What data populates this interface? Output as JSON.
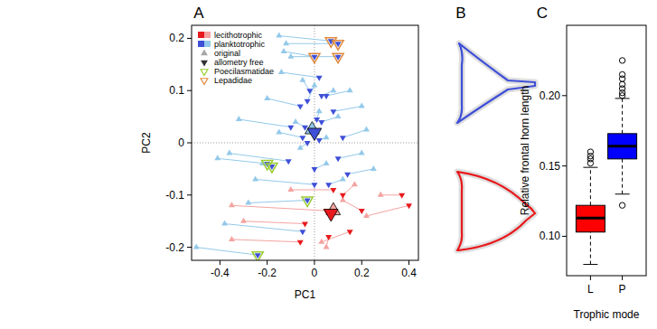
{
  "chart_data": [
    {
      "type": "scatter",
      "panel": "A",
      "x_label": "PC1",
      "y_label": "PC2",
      "xlim": [
        -0.52,
        0.44
      ],
      "ylim": [
        -0.225,
        0.225
      ],
      "xticks": [
        -0.4,
        -0.2,
        0,
        0.2,
        0.4
      ],
      "yticks": [
        -0.2,
        -0.1,
        0,
        0.1,
        0.2
      ],
      "reference_lines": {
        "x": 0,
        "y": 0
      },
      "legend": "top-left",
      "series": [
        {
          "name": "lecithotrophic",
          "colors": [
            "#e8191c",
            "#f4a3a0"
          ],
          "original": {
            "x": [
              -0.35,
              -0.35,
              -0.3,
              0.17,
              0.22,
              0.12,
              0.03,
              0.28,
              -0.1,
              0.05
            ],
            "y": [
              -0.185,
              -0.12,
              -0.15,
              -0.08,
              -0.14,
              -0.11,
              -0.19,
              -0.1,
              -0.09,
              -0.2
            ]
          },
          "allometry_free": {
            "x": [
              -0.06,
              0.05,
              -0.04,
              0.12,
              0.4,
              0.2,
              0.15,
              0.37,
              0.08,
              0.06
            ],
            "y": [
              -0.19,
              -0.13,
              -0.155,
              -0.1,
              -0.12,
              -0.13,
              -0.17,
              -0.1,
              -0.09,
              -0.18
            ]
          },
          "mean_original": [
            0.08,
            -0.13
          ],
          "mean_allometry_free": [
            0.07,
            -0.135
          ]
        },
        {
          "name": "planktotrophic",
          "colors": [
            "#3f4fd8",
            "#93c9ea"
          ],
          "original": {
            "x": [
              -0.15,
              -0.12,
              -0.13,
              -0.1,
              -0.14,
              -0.05,
              0.0,
              0.08,
              0.2,
              -0.2,
              -0.32,
              0.1,
              0.22,
              -0.15,
              -0.06,
              0.2,
              -0.36,
              -0.41,
              0.25,
              0.05,
              -0.25,
              0.12,
              -0.28,
              -0.38,
              -0.5,
              0.02,
              -0.08,
              0.05,
              0.15,
              -0.22
            ],
            "y": [
              0.205,
              0.19,
              0.175,
              0.165,
              0.135,
              0.12,
              0.11,
              0.1,
              0.07,
              0.085,
              0.045,
              0.05,
              0.025,
              0.02,
              -0.01,
              -0.02,
              -0.02,
              -0.03,
              -0.05,
              -0.04,
              -0.07,
              -0.07,
              -0.115,
              -0.155,
              -0.2,
              0.06,
              0.04,
              0.01,
              0.1,
              -0.04
            ]
          },
          "allometry_free": {
            "x": [
              0.07,
              0.1,
              0.0,
              0.1,
              0.02,
              -0.02,
              -0.03,
              0.03,
              0.08,
              -0.06,
              -0.1,
              0.03,
              0.12,
              -0.05,
              -0.03,
              0.1,
              -0.11,
              -0.2,
              0.14,
              0.0,
              0.0,
              0.06,
              -0.03,
              -0.05,
              -0.24,
              0.01,
              -0.04,
              0.02,
              0.05,
              -0.18
            ],
            "y": [
              0.195,
              0.19,
              0.165,
              0.165,
              0.125,
              0.1,
              0.08,
              0.09,
              0.06,
              0.07,
              0.03,
              0.04,
              0.01,
              0.01,
              0.0,
              -0.03,
              -0.035,
              -0.04,
              -0.06,
              -0.05,
              -0.08,
              -0.08,
              -0.11,
              -0.17,
              -0.215,
              0.045,
              0.03,
              0.005,
              0.09,
              -0.045
            ]
          },
          "mean_original": [
            -0.01,
            0.025
          ],
          "mean_allometry_free": [
            0.0,
            0.02
          ]
        }
      ],
      "marker_series": [
        {
          "name": "original",
          "marker": "triangle-up",
          "color": "#a6a6a6"
        },
        {
          "name": "allometry free",
          "marker": "triangle-down",
          "color": "#333333"
        }
      ],
      "families": [
        {
          "name": "Poecilasmatidae",
          "color": "#9acd32",
          "marker": "triangle-down",
          "x": [
            -0.2,
            -0.18,
            -0.24,
            -0.03
          ],
          "y": [
            -0.04,
            -0.045,
            -0.215,
            -0.11
          ]
        },
        {
          "name": "Lepadidae",
          "color": "#e08a3c",
          "marker": "triangle-down",
          "x": [
            0.07,
            0.1,
            0.0,
            0.1
          ],
          "y": [
            0.195,
            0.19,
            0.165,
            0.165
          ]
        }
      ]
    },
    {
      "type": "box",
      "panel": "C",
      "x_label": "Trophic mode",
      "y_label": "Relative frontal horn length",
      "categories": [
        "L",
        "P"
      ],
      "colors": [
        "#ff0000",
        "#0000ff"
      ],
      "ylim": [
        0.072,
        0.25
      ],
      "yticks": [
        {
          "value": 0.1,
          "label": "0.10"
        },
        {
          "value": 0.15,
          "label": "0.15"
        },
        {
          "value": 0.2,
          "label": "0.20"
        }
      ],
      "boxes": [
        {
          "whisker_low": 0.08,
          "q1": 0.103,
          "median": 0.113,
          "q3": 0.122,
          "whisker_high": 0.149,
          "outliers": [
            0.152,
            0.155,
            0.157,
            0.16
          ]
        },
        {
          "whisker_low": 0.13,
          "q1": 0.155,
          "median": 0.164,
          "q3": 0.173,
          "whisker_high": 0.198,
          "outliers": [
            0.122,
            0.2,
            0.202,
            0.205,
            0.208,
            0.212,
            0.215,
            0.225
          ]
        }
      ]
    }
  ],
  "diagram": {
    "panel": "B"
  }
}
